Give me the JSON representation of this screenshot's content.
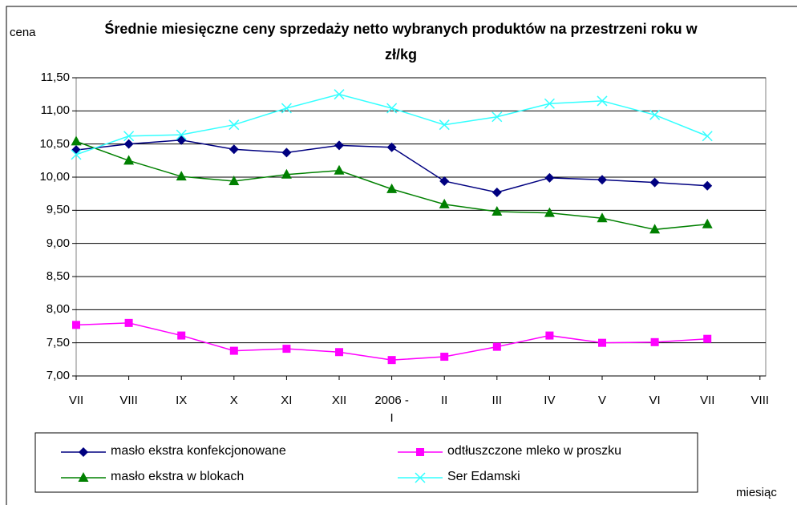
{
  "chart_data": {
    "type": "line",
    "title": "Średnie miesięczne ceny sprzedaży netto  wybranych produktów na przestrzeni roku w zł/kg",
    "y_label": "cena",
    "x_label": "miesiąc",
    "categories": [
      "VII",
      "VIII",
      "IX",
      "X",
      "XI",
      "XII",
      "2006 - I",
      "II",
      "III",
      "IV",
      "V",
      "VI",
      "VII",
      "VIII"
    ],
    "series": [
      {
        "name": "masło ekstra konfekcjonowane",
        "color": "#000080",
        "marker": "diamond",
        "values": [
          10.41,
          10.5,
          10.56,
          10.42,
          10.37,
          10.48,
          10.45,
          9.94,
          9.77,
          9.99,
          9.96,
          9.92,
          9.87,
          null
        ]
      },
      {
        "name": "odtłuszczone mleko w proszku",
        "color": "#ff00ff",
        "marker": "square",
        "values": [
          7.77,
          7.8,
          7.61,
          7.38,
          7.41,
          7.36,
          7.24,
          7.29,
          7.44,
          7.61,
          7.5,
          7.51,
          7.56,
          null
        ]
      },
      {
        "name": "masło ekstra w blokach",
        "color": "#008000",
        "marker": "triangle",
        "values": [
          10.54,
          10.25,
          10.01,
          9.94,
          10.04,
          10.1,
          9.82,
          9.59,
          9.48,
          9.46,
          9.38,
          9.21,
          9.29,
          null
        ]
      },
      {
        "name": "Ser Edamski",
        "color": "#33ffff",
        "marker": "x",
        "values": [
          10.34,
          10.62,
          10.64,
          10.79,
          11.04,
          11.25,
          11.04,
          10.79,
          10.91,
          11.11,
          11.15,
          10.94,
          10.62,
          null
        ]
      }
    ],
    "ylim": [
      7,
      11.5
    ],
    "yticks": [
      {
        "value": 7,
        "label": "7,00"
      },
      {
        "value": 7.5,
        "label": "7,50"
      },
      {
        "value": 8,
        "label": "8,00"
      },
      {
        "value": 8.5,
        "label": "8,50"
      },
      {
        "value": 9,
        "label": "9,00"
      },
      {
        "value": 9.5,
        "label": "9,50"
      },
      {
        "value": 10,
        "label": "10,00"
      },
      {
        "value": 10.5,
        "label": "10,50"
      },
      {
        "value": 11,
        "label": "11,00"
      },
      {
        "value": 11.5,
        "label": "11,50"
      }
    ],
    "grid": true,
    "legend": "bottom"
  }
}
